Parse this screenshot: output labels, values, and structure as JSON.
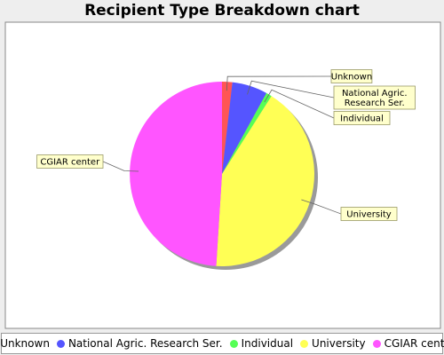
{
  "chart_data": {
    "type": "pie",
    "title": "Recipient Type Breakdown chart",
    "legend_position": "bottom",
    "slices": [
      {
        "label": "Unknown",
        "value": 1.8,
        "color": "#ff5555"
      },
      {
        "label": "National Agric. Research Ser.",
        "value": 6.2,
        "color": "#5555ff"
      },
      {
        "label": "Individual",
        "value": 1.0,
        "color": "#55ff55"
      },
      {
        "label": "University",
        "value": 42.0,
        "color": "#ffff55"
      },
      {
        "label": "CGIAR center",
        "value": 49.0,
        "color": "#ff55ff"
      }
    ]
  }
}
